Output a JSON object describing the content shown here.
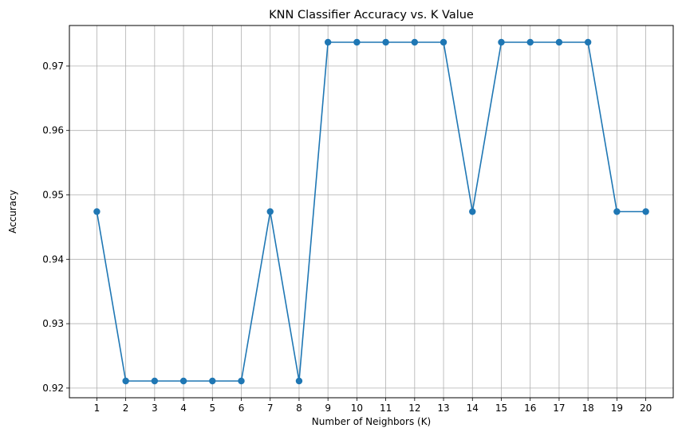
{
  "chart_data": {
    "type": "line",
    "title": "KNN Classifier Accuracy vs. K Value",
    "xlabel": "Number of Neighbors (K)",
    "ylabel": "Accuracy",
    "x": [
      1,
      2,
      3,
      4,
      5,
      6,
      7,
      8,
      9,
      10,
      11,
      12,
      13,
      14,
      15,
      16,
      17,
      18,
      19,
      20
    ],
    "series": [
      {
        "values": [
          0.9474,
          0.9211,
          0.9211,
          0.9211,
          0.9211,
          0.9211,
          0.9474,
          0.9211,
          0.9737,
          0.9737,
          0.9737,
          0.9737,
          0.9737,
          0.9474,
          0.9737,
          0.9737,
          0.9737,
          0.9737,
          0.9474,
          0.9474
        ],
        "color": "#1f77b4",
        "marker": "circle"
      }
    ],
    "xticks": [
      "1",
      "2",
      "3",
      "4",
      "5",
      "6",
      "7",
      "8",
      "9",
      "10",
      "11",
      "12",
      "13",
      "14",
      "15",
      "16",
      "17",
      "18",
      "19",
      "20"
    ],
    "yticks": [
      0.92,
      0.93,
      0.94,
      0.95,
      0.96,
      0.97
    ],
    "ytick_labels": [
      "0.92",
      "0.93",
      "0.94",
      "0.95",
      "0.96",
      "0.97"
    ],
    "xlim": [
      0.05,
      20.95
    ],
    "ylim": [
      0.9185,
      0.9763
    ],
    "grid": true,
    "colors": {
      "grid": "#b0b0b0",
      "axes": "#000000"
    }
  }
}
